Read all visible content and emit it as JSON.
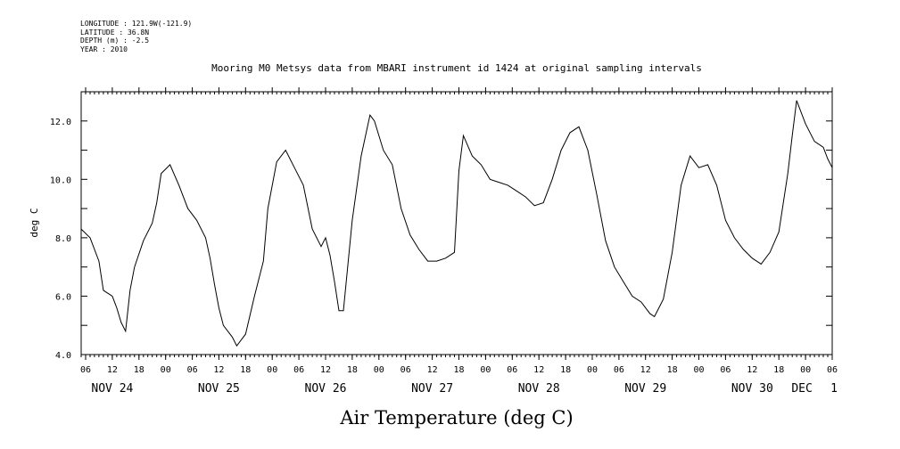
{
  "meta": {
    "longitude": "LONGITUDE : 121.9W(-121.9)",
    "latitude": "LATITUDE : 36.8N",
    "depth": "DEPTH (m) : -2.5",
    "year": "YEAR : 2010"
  },
  "chart_data": {
    "type": "line",
    "title": "Mooring M0 Metsys data from MBARI instrument id 1424 at original sampling intervals",
    "xlabel": "Air Temperature (deg C)",
    "ylabel": "deg C",
    "ylim": [
      4.0,
      13.0
    ],
    "yticks": [
      "4.0",
      "6.0",
      "8.0",
      "10.0",
      "12.0"
    ],
    "xlim": [
      "2010-11-24T05:00",
      "2010-12-01T06:00"
    ],
    "hour_ticks": [
      "06",
      "12",
      "18",
      "00",
      "06",
      "12",
      "18",
      "00",
      "06",
      "12",
      "18",
      "00",
      "06",
      "12",
      "18",
      "00",
      "06",
      "12",
      "18",
      "00",
      "06",
      "12",
      "18",
      "00",
      "06",
      "12",
      "18",
      "00",
      "06"
    ],
    "date_labels": [
      "NOV 24",
      "NOV 25",
      "NOV 26",
      "NOV 27",
      "NOV 28",
      "NOV 29",
      "NOV 30",
      "DEC",
      "1"
    ],
    "grid": false,
    "series": [
      {
        "color": "#000000",
        "x": [
          "2010-11-24T05:00",
          "2010-11-24T07:00",
          "2010-11-24T09:00",
          "2010-11-24T10:00",
          "2010-11-24T11:00",
          "2010-11-24T12:00",
          "2010-11-24T13:00",
          "2010-11-24T14:00",
          "2010-11-24T15:00",
          "2010-11-24T16:00",
          "2010-11-24T17:00",
          "2010-11-24T19:00",
          "2010-11-24T21:00",
          "2010-11-24T22:00",
          "2010-11-24T23:00",
          "2010-11-25T01:00",
          "2010-11-25T03:00",
          "2010-11-25T05:00",
          "2010-11-25T07:00",
          "2010-11-25T09:00",
          "2010-11-25T10:00",
          "2010-11-25T11:00",
          "2010-11-25T12:00",
          "2010-11-25T13:00",
          "2010-11-25T14:00",
          "2010-11-25T15:00",
          "2010-11-25T16:00",
          "2010-11-25T18:00",
          "2010-11-25T20:00",
          "2010-11-25T22:00",
          "2010-11-25T23:00",
          "2010-11-26T01:00",
          "2010-11-26T03:00",
          "2010-11-26T05:00",
          "2010-11-26T07:00",
          "2010-11-26T09:00",
          "2010-11-26T11:00",
          "2010-11-26T12:00",
          "2010-11-26T13:00",
          "2010-11-26T14:00",
          "2010-11-26T15:00",
          "2010-11-26T16:00",
          "2010-11-26T18:00",
          "2010-11-26T20:00",
          "2010-11-26T22:00",
          "2010-11-26T23:00",
          "2010-11-27T01:00",
          "2010-11-27T03:00",
          "2010-11-27T05:00",
          "2010-11-27T07:00",
          "2010-11-27T09:00",
          "2010-11-27T11:00",
          "2010-11-27T13:00",
          "2010-11-27T15:00",
          "2010-11-27T17:00",
          "2010-11-27T18:00",
          "2010-11-27T19:00",
          "2010-11-27T21:00",
          "2010-11-27T23:00",
          "2010-11-28T01:00",
          "2010-11-28T03:00",
          "2010-11-28T05:00",
          "2010-11-28T07:00",
          "2010-11-28T09:00",
          "2010-11-28T11:00",
          "2010-11-28T13:00",
          "2010-11-28T15:00",
          "2010-11-28T17:00",
          "2010-11-28T19:00",
          "2010-11-28T21:00",
          "2010-11-28T23:00",
          "2010-11-29T01:00",
          "2010-11-29T03:00",
          "2010-11-29T05:00",
          "2010-11-29T07:00",
          "2010-11-29T09:00",
          "2010-11-29T11:00",
          "2010-11-29T13:00",
          "2010-11-29T14:00",
          "2010-11-29T15:00",
          "2010-11-29T16:00",
          "2010-11-29T18:00",
          "2010-11-29T20:00",
          "2010-11-29T22:00",
          "2010-11-30T00:00",
          "2010-11-30T02:00",
          "2010-11-30T04:00",
          "2010-11-30T06:00",
          "2010-11-30T08:00",
          "2010-11-30T10:00",
          "2010-11-30T12:00",
          "2010-11-30T14:00",
          "2010-11-30T16:00",
          "2010-11-30T18:00",
          "2010-11-30T20:00",
          "2010-11-30T21:00",
          "2010-11-30T22:00",
          "2010-12-01T00:00",
          "2010-12-01T02:00",
          "2010-12-01T04:00",
          "2010-12-01T05:00",
          "2010-12-01T06:00"
        ],
        "y": [
          8.3,
          8.0,
          7.2,
          6.2,
          6.1,
          6.0,
          5.6,
          5.1,
          4.8,
          6.2,
          7.0,
          7.9,
          8.5,
          9.2,
          10.2,
          10.5,
          9.8,
          9.0,
          8.6,
          8.0,
          7.3,
          6.4,
          5.6,
          5.0,
          4.8,
          4.6,
          4.3,
          4.7,
          6.0,
          7.2,
          9.0,
          10.6,
          11.0,
          10.4,
          9.8,
          8.3,
          7.7,
          8.0,
          7.4,
          6.5,
          5.5,
          5.5,
          8.6,
          10.8,
          12.2,
          12.0,
          11.0,
          10.5,
          9.0,
          8.1,
          7.6,
          7.2,
          7.2,
          7.3,
          7.5,
          10.3,
          11.5,
          10.8,
          10.5,
          10.0,
          9.9,
          9.8,
          9.6,
          9.4,
          9.1,
          9.2,
          10.0,
          11.0,
          11.6,
          11.8,
          11.0,
          9.5,
          7.9,
          7.0,
          6.5,
          6.0,
          5.8,
          5.4,
          5.3,
          5.6,
          5.9,
          7.5,
          9.8,
          10.8,
          10.4,
          10.5,
          9.8,
          8.6,
          8.0,
          7.6,
          7.3,
          7.1,
          7.5,
          8.2,
          10.2,
          11.5,
          12.7,
          11.9,
          11.3,
          11.1,
          10.7,
          10.4
        ]
      }
    ]
  }
}
